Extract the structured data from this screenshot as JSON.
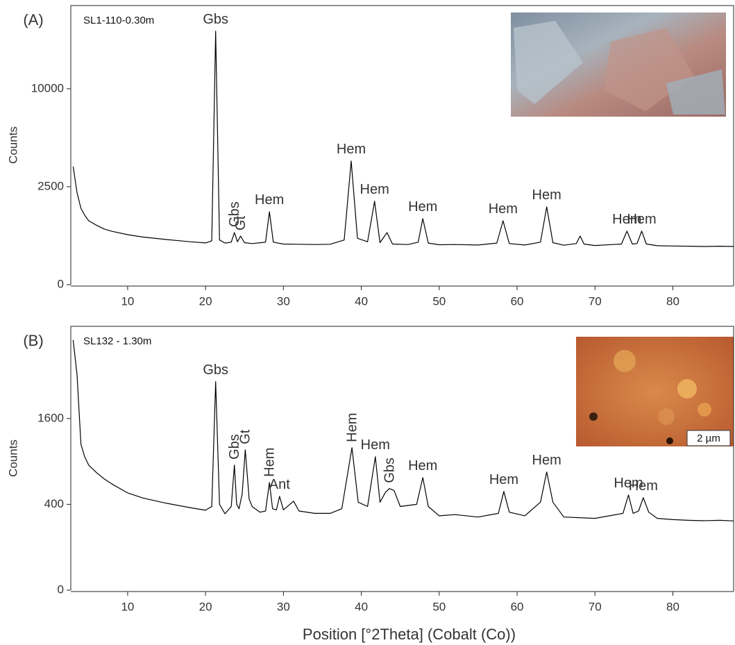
{
  "chart_data": [
    {
      "type": "line",
      "panel_label": "(A)",
      "sample": "SL1-110-0.30m",
      "y_label": "Counts",
      "yscale": "sqrt",
      "color": "#000000",
      "xlim": [
        2.7,
        87.8
      ],
      "ylim": [
        0,
        20300
      ],
      "xticks": [
        10,
        20,
        30,
        40,
        50,
        60,
        70,
        80
      ],
      "yticks": [
        0,
        2500,
        10000
      ],
      "x": [
        3,
        3.5,
        4,
        4.5,
        5,
        6,
        7,
        8,
        10,
        12,
        15,
        18,
        20,
        20.8,
        21.3,
        21.8,
        22.5,
        23.3,
        23.7,
        24.1,
        24.5,
        25,
        26,
        27.7,
        28.2,
        28.7,
        30,
        32,
        34,
        36,
        37.8,
        38.7,
        39.5,
        40.8,
        41.7,
        42.4,
        43.3,
        44,
        46,
        47.3,
        47.9,
        48.6,
        50,
        52,
        55,
        57.4,
        58.2,
        59,
        61,
        63,
        63.8,
        64.6,
        66,
        67.6,
        68.1,
        68.6,
        70,
        73.4,
        74.1,
        74.8,
        75.4,
        76,
        76.6,
        78,
        80,
        82,
        84,
        86,
        87.8
      ],
      "values": [
        3636,
        2200,
        1521,
        1250,
        1064,
        920,
        805,
        740,
        652,
        590,
        531,
        480,
        453,
        500,
        16750,
        520,
        450,
        470,
        707,
        480,
        616,
        460,
        440,
        470,
        1386,
        470,
        430,
        425,
        420,
        425,
        520,
        3985,
        560,
        480,
        1811,
        460,
        707,
        430,
        420,
        470,
        1135,
        450,
        415,
        420,
        410,
        450,
        1064,
        440,
        410,
        470,
        1577,
        460,
        405,
        440,
        616,
        430,
        400,
        430,
        746,
        430,
        440,
        746,
        430,
        395,
        390,
        385,
        380,
        385,
        380
      ],
      "annotations": [
        {
          "text": "Gbs",
          "x": 21.3
        },
        {
          "text": "Gbs",
          "x": 23.7,
          "vertical": true
        },
        {
          "text": "Gt",
          "x": 24.5,
          "vertical": true
        },
        {
          "text": "Hem",
          "x": 28.2
        },
        {
          "text": "Hem",
          "x": 38.7
        },
        {
          "text": "Hem",
          "x": 41.7
        },
        {
          "text": "Hem",
          "x": 47.9
        },
        {
          "text": "Hem",
          "x": 58.2
        },
        {
          "text": "Hem",
          "x": 63.8
        },
        {
          "text": "Hem",
          "x": 74.1
        },
        {
          "text": "Hem",
          "x": 76
        }
      ]
    },
    {
      "type": "line",
      "panel_label": "(B)",
      "sample": "SL132 - 1.30m",
      "y_label": "Counts",
      "x_label": "Position [°2Theta] (Cobalt (Co))",
      "inset_label": "2 µm",
      "yscale": "sqrt",
      "color": "#000000",
      "xlim": [
        2.7,
        87.8
      ],
      "ylim": [
        0,
        3780
      ],
      "xticks": [
        10,
        20,
        30,
        40,
        50,
        60,
        70,
        80
      ],
      "yticks": [
        0,
        400,
        1600
      ],
      "x": [
        3,
        3.5,
        4,
        4.5,
        5,
        6,
        7,
        8,
        10,
        12,
        15,
        18,
        20,
        20.8,
        21.3,
        21.8,
        22.5,
        23.3,
        23.7,
        24,
        24.3,
        24.7,
        25.1,
        25.6,
        26,
        27,
        27.7,
        28.2,
        28.6,
        29.1,
        29.5,
        30,
        31.3,
        32,
        34,
        36,
        37.5,
        38.8,
        39.6,
        40.8,
        41.8,
        42.4,
        43.1,
        43.6,
        44.2,
        45,
        47.1,
        47.9,
        48.6,
        50,
        52,
        55,
        57.6,
        58.3,
        59,
        61,
        63,
        63.8,
        64.6,
        66,
        70,
        73.6,
        74.3,
        74.9,
        75.6,
        76.2,
        76.9,
        78,
        80,
        82,
        84,
        86,
        87.8
      ],
      "values": [
        3399,
        2520,
        1157,
        960,
        849,
        750,
        671,
        610,
        514,
        460,
        410,
        370,
        347,
        380,
        2360,
        400,
        317,
        380,
        849,
        400,
        360,
        500,
        1070,
        450,
        378,
        330,
        340,
        630,
        360,
        350,
        478,
        350,
        430,
        340,
        320,
        320,
        360,
        1102,
        420,
        380,
        967,
        420,
        520,
        560,
        540,
        380,
        400,
        688,
        380,
        300,
        310,
        290,
        320,
        529,
        330,
        300,
        420,
        758,
        420,
        290,
        280,
        320,
        492,
        320,
        340,
        464,
        330,
        280,
        270,
        265,
        262,
        265,
        260
      ],
      "annotations": [
        {
          "text": "Gbs",
          "x": 21.3
        },
        {
          "text": "Gbs",
          "x": 23.7,
          "vertical": true
        },
        {
          "text": "Gt",
          "x": 25.1,
          "vertical": true
        },
        {
          "text": "Hem",
          "x": 28.2,
          "vertical": true
        },
        {
          "text": "Ant",
          "x": 29.5
        },
        {
          "text": "Hem",
          "x": 38.8,
          "vertical": true
        },
        {
          "text": "Hem",
          "x": 41.8
        },
        {
          "text": "Gbs",
          "x": 43.6,
          "vertical": true
        },
        {
          "text": "Hem",
          "x": 47.9
        },
        {
          "text": "Hem",
          "x": 58.3
        },
        {
          "text": "Hem",
          "x": 63.8
        },
        {
          "text": "Hem",
          "x": 74.3
        },
        {
          "text": "Hem",
          "x": 76.2
        }
      ]
    }
  ]
}
